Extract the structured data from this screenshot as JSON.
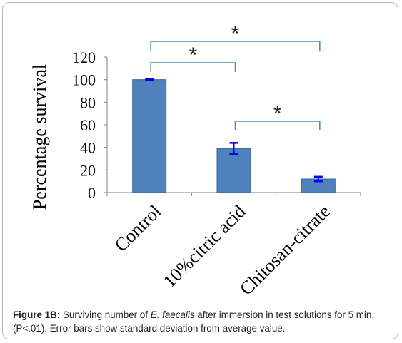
{
  "chart_data": {
    "type": "bar",
    "categories": [
      "Control",
      "10%citric acid",
      "Chitosan-citrate"
    ],
    "values": [
      100,
      39,
      12
    ],
    "errors": [
      0.5,
      5,
      2
    ],
    "ylabel": "Percentage survival",
    "xlabel": "",
    "ylim": [
      0,
      120
    ],
    "yticks": [
      0,
      20,
      40,
      60,
      80,
      100,
      120
    ],
    "grid": false,
    "legend": "none",
    "significance": [
      {
        "from": 0,
        "to": 2,
        "label": "*"
      },
      {
        "from": 0,
        "to": 1,
        "label": "*"
      },
      {
        "from": 1,
        "to": 2,
        "label": "*"
      }
    ],
    "colors": {
      "bar": "#4f81bd",
      "bar_edge": "#3a669b",
      "error_bar": "#0000ee",
      "bracket": "#4b8bbd",
      "axis": "#7f7f7f"
    }
  },
  "caption": {
    "label": "Figure 1B:",
    "text_before": " Surviving number of ",
    "species": "E. faecalis",
    "text_after": " after immersion in test solutions for 5 min. (P<.01). Error bars show standard deviation from average value."
  }
}
